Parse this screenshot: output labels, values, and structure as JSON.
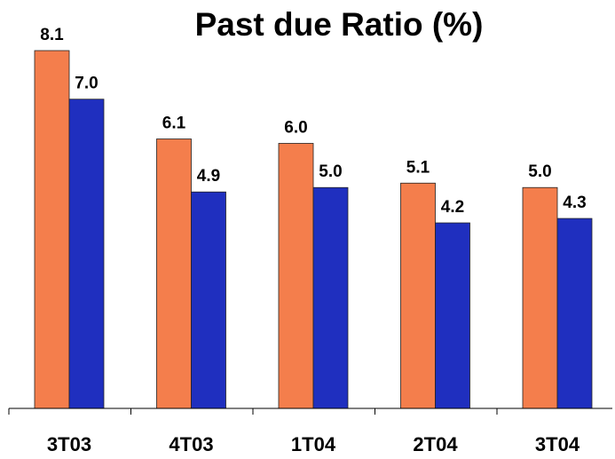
{
  "chart_data": {
    "type": "bar",
    "title": "Past due Ratio (%)",
    "categories": [
      "3T03",
      "4T03",
      "1T04",
      "2T04",
      "3T04"
    ],
    "series": [
      {
        "color": "#f47e4c",
        "values": [
          8.1,
          6.1,
          6.0,
          5.1,
          5.0
        ],
        "labels": [
          "8.1",
          "6.1",
          "6.0",
          "5.1",
          "5.0"
        ]
      },
      {
        "color": "#1f2fbf",
        "values": [
          7.0,
          4.9,
          5.0,
          4.2,
          4.3
        ],
        "labels": [
          "7.0",
          "4.9",
          "5.0",
          "4.2",
          "4.3"
        ]
      }
    ],
    "ylim": [
      0,
      8.1
    ],
    "grid": false,
    "legend": "none",
    "xlabel": "",
    "ylabel": ""
  }
}
